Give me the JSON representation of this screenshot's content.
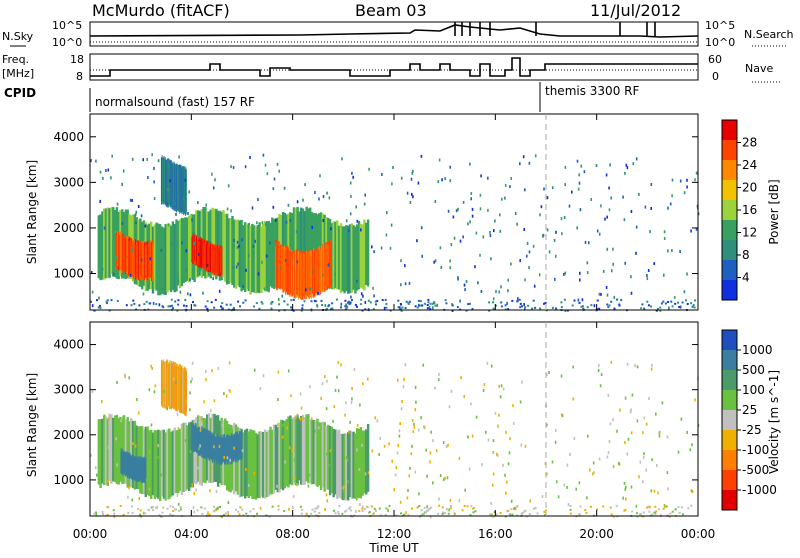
{
  "header": {
    "station": "McMurdo (fitACF)",
    "beam": "Beam 03",
    "date": "11/Jul/2012"
  },
  "strip": {
    "left_label_1": "N.Sky",
    "left_label_2": "Freq.",
    "left_label_3": "[MHz]",
    "left_label_4": "CPID",
    "right_label_1": "N.Search",
    "right_label_2": "Nave",
    "ticks_left_top": [
      "10^5",
      "10^0"
    ],
    "ticks_right_top": [
      "10^5",
      "10^0"
    ],
    "ticks_left_freq": [
      "18",
      "8"
    ],
    "ticks_right_nave": [
      "60",
      "0"
    ],
    "cpid_1": "normalsound (fast) 157 RF",
    "cpid_2": "themis 3300 RF"
  },
  "chart_data": [
    {
      "type": "heatmap",
      "title": "",
      "xlabel": "",
      "ylabel": "Slant Range [km]",
      "xlim": [
        "00:00",
        "00:00"
      ],
      "ylim": [
        200,
        4500
      ],
      "x_ticks": [
        "00:00",
        "04:00",
        "08:00",
        "12:00",
        "16:00",
        "20:00",
        "00:00"
      ],
      "y_ticks": [
        "1000",
        "2000",
        "3000",
        "4000"
      ],
      "colorbar": {
        "label": "Power [dB]",
        "ticks": [
          "28",
          "24",
          "20",
          "16",
          "12",
          "8",
          "4"
        ],
        "colors": [
          "#e60000",
          "#ff4400",
          "#ff8800",
          "#f2c200",
          "#9bd33d",
          "#3aa060",
          "#2f8f7a",
          "#1f5fbf",
          "#1030e0"
        ]
      },
      "regions": [
        {
          "t_start": 0.3,
          "t_end": 11.0,
          "r_min": 700,
          "r_max": 2300,
          "value": 12
        },
        {
          "t_start": 1.0,
          "t_end": 2.5,
          "r_min": 1000,
          "r_max": 1900,
          "value": 26
        },
        {
          "t_start": 4.0,
          "t_end": 5.2,
          "r_min": 1100,
          "r_max": 1800,
          "value": 28
        },
        {
          "t_start": 7.3,
          "t_end": 9.5,
          "r_min": 600,
          "r_max": 1700,
          "value": 25
        },
        {
          "t_start": 2.8,
          "t_end": 3.8,
          "r_min": 2400,
          "r_max": 3500,
          "value": 6
        }
      ]
    },
    {
      "type": "heatmap",
      "title": "",
      "xlabel": "Time UT",
      "ylabel": "Slant Range [km]",
      "xlim": [
        "00:00",
        "00:00"
      ],
      "ylim": [
        200,
        4500
      ],
      "x_ticks": [
        "00:00",
        "04:00",
        "08:00",
        "12:00",
        "16:00",
        "20:00",
        "00:00"
      ],
      "y_ticks": [
        "1000",
        "2000",
        "3000",
        "4000"
      ],
      "colorbar": {
        "label": "Velocity [m s^-1]",
        "ticks": [
          "1000",
          "500",
          "100",
          "25",
          "-25",
          "-100",
          "-500",
          "-1000"
        ],
        "colors": [
          "#1f4fbf",
          "#3a7fa0",
          "#4a9a6a",
          "#6ac040",
          "#c0c0c0",
          "#f0b000",
          "#ff8000",
          "#ff4000",
          "#e00000"
        ]
      },
      "regions": [
        {
          "t_start": 0.3,
          "t_end": 11.0,
          "r_min": 700,
          "r_max": 2300,
          "value": 150
        },
        {
          "t_start": 1.2,
          "t_end": 2.2,
          "r_min": 1100,
          "r_max": 1700,
          "value": 800
        },
        {
          "t_start": 4.0,
          "t_end": 6.0,
          "r_min": 1500,
          "r_max": 2200,
          "value": 700
        },
        {
          "t_start": 2.8,
          "t_end": 3.8,
          "r_min": 2400,
          "r_max": 3500,
          "value": -150
        }
      ]
    }
  ]
}
